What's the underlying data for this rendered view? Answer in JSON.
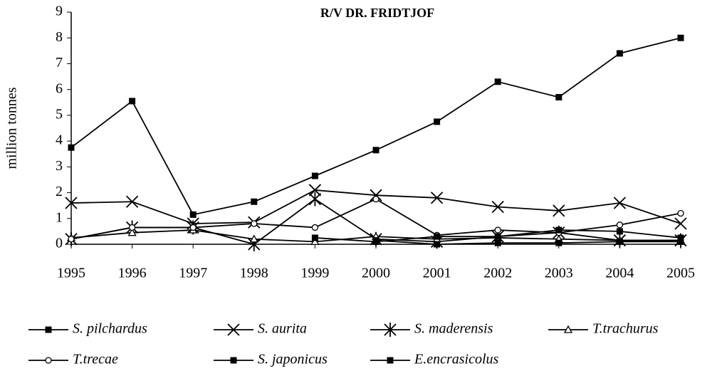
{
  "chart_data": {
    "type": "line",
    "title": "R/V DR. FRIDTJOF",
    "ylabel": "million tonnes",
    "x": [
      1995,
      1996,
      1997,
      1998,
      1999,
      2000,
      2001,
      2002,
      2003,
      2004,
      2005
    ],
    "xlim": [
      1995,
      2005
    ],
    "xticks": [
      1995,
      1996,
      1997,
      1998,
      1999,
      2000,
      2001,
      2002,
      2003,
      2004,
      2005
    ],
    "ylim": [
      0,
      9
    ],
    "yticks": [
      0,
      1,
      2,
      3,
      4,
      5,
      6,
      7,
      8,
      9
    ],
    "series": [
      {
        "name": "S. pilchardus",
        "color": "#000000",
        "marker": "square",
        "values": [
          3.75,
          5.55,
          1.15,
          1.65,
          2.65,
          3.65,
          4.75,
          6.3,
          5.7,
          7.4,
          8.0
        ]
      },
      {
        "name": "S. aurita",
        "color": "#000000",
        "marker": "x",
        "values": [
          1.6,
          1.65,
          0.8,
          0.85,
          2.1,
          1.9,
          1.8,
          1.45,
          1.3,
          1.6,
          0.8
        ]
      },
      {
        "name": "S. maderensis",
        "color": "#000000",
        "marker": "asterisk",
        "values": [
          0.2,
          0.65,
          0.65,
          0.0,
          1.75,
          0.2,
          0.1,
          0.3,
          0.45,
          0.15,
          0.15
        ]
      },
      {
        "name": "T.trachurus",
        "color": "#000000",
        "marker": "triangle",
        "values": [
          0.25,
          0.45,
          0.55,
          0.2,
          0.1,
          0.3,
          0.2,
          0.25,
          0.2,
          0.15,
          0.15
        ]
      },
      {
        "name": "T.trecae",
        "color": "#000000",
        "marker": "circle",
        "values": [
          0.2,
          0.65,
          0.65,
          0.8,
          0.65,
          1.75,
          0.35,
          0.55,
          0.45,
          0.75,
          1.2
        ]
      },
      {
        "name": "S. japonicus",
        "color": "#000000",
        "marker": "square",
        "values": [
          null,
          null,
          null,
          null,
          0.25,
          0.1,
          0.3,
          0.3,
          0.55,
          0.5,
          0.25
        ]
      },
      {
        "name": "E.encrasicolus",
        "color": "#000000",
        "marker": "square",
        "values": [
          null,
          null,
          null,
          null,
          null,
          0.15,
          0.0,
          0.05,
          0.05,
          0.1,
          0.1
        ]
      }
    ]
  }
}
